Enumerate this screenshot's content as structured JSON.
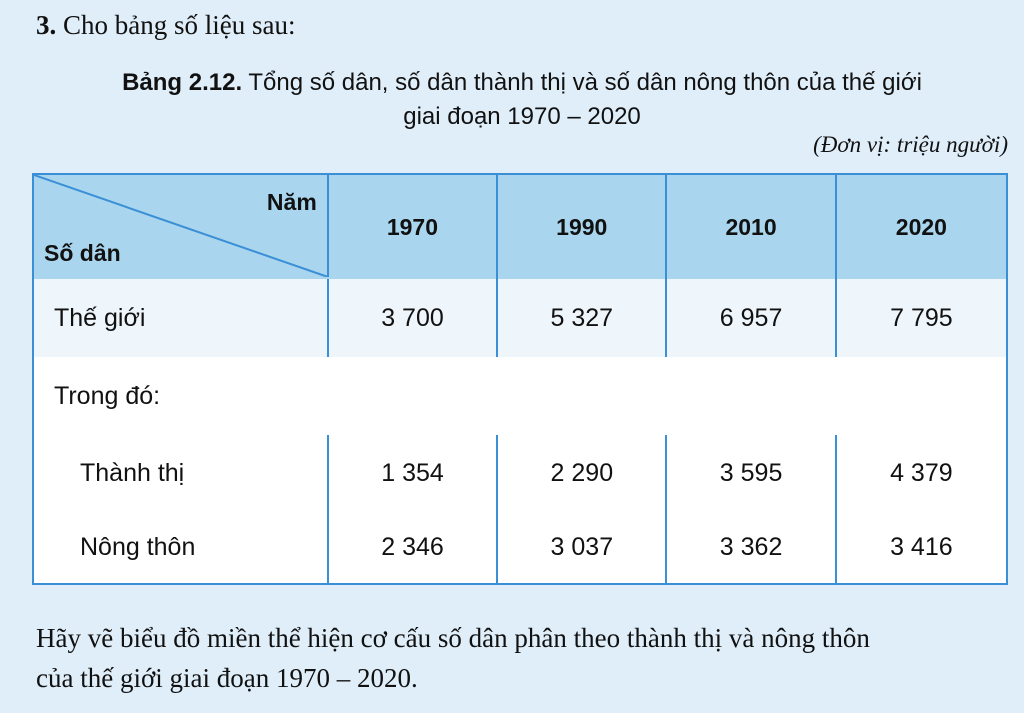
{
  "question": {
    "number": "3.",
    "text": "Cho bảng số liệu sau:"
  },
  "table": {
    "caption_label": "Bảng 2.12.",
    "caption_line1": "Tổng số dân, số dân thành thị và số dân nông thôn của thế giới",
    "caption_line2": "giai đoạn 1970 – 2020",
    "unit": "(Đơn vị: triệu người)",
    "corner_top": "Năm",
    "corner_bottom": "Số dân",
    "years": [
      "1970",
      "1990",
      "2010",
      "2020"
    ],
    "rows": [
      {
        "label": "Thế giới",
        "values": [
          "3 700",
          "5 327",
          "6 957",
          "7 795"
        ]
      },
      {
        "label": "Trong đó:"
      },
      {
        "label": "Thành thị",
        "values": [
          "1 354",
          "2 290",
          "3 595",
          "4 379"
        ]
      },
      {
        "label": "Nông thôn",
        "values": [
          "2 346",
          "3 037",
          "3 362",
          "3 416"
        ]
      }
    ]
  },
  "task": {
    "line1": "Hãy vẽ biểu đồ miền thể hiện cơ cấu số dân phân theo thành thị và nông thôn",
    "line2": "của thế giới giai đoạn 1970 – 2020."
  },
  "colors": {
    "background": "#dfeef9",
    "header_fill": "#a9d6ee",
    "border": "#3a8fd6"
  }
}
